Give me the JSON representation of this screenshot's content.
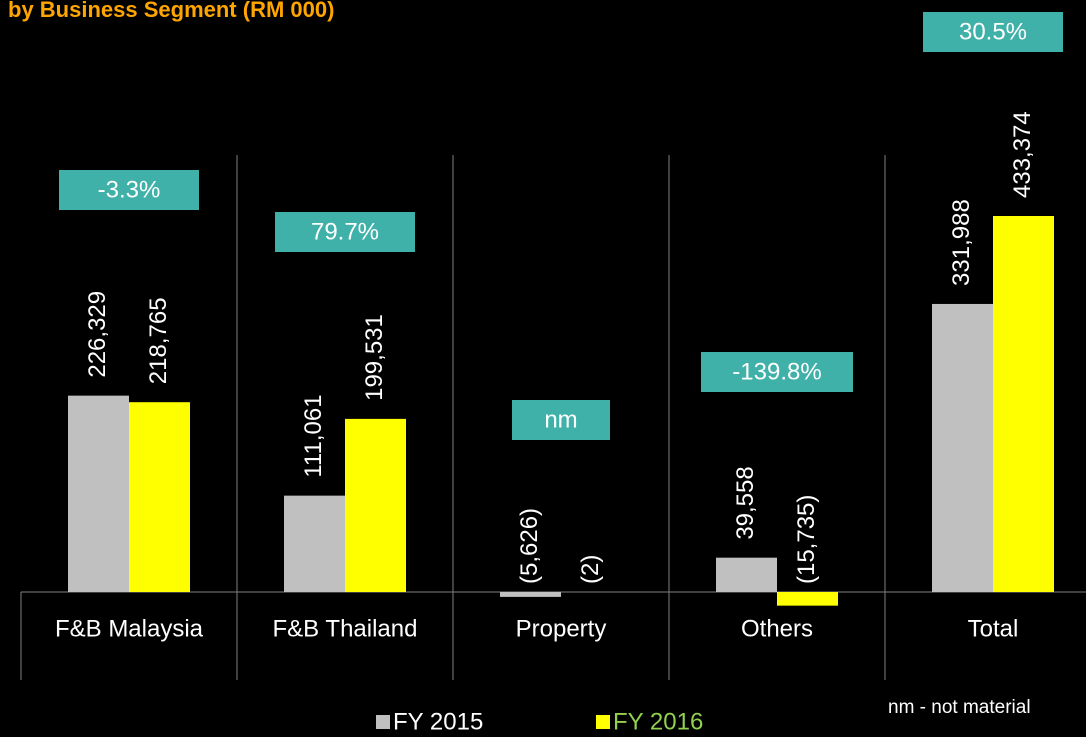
{
  "chart_data": {
    "type": "bar",
    "title": "by Business Segment (RM 000)",
    "categories": [
      "F&B Malaysia",
      "F&B Thailand",
      "Property",
      "Others",
      "Total"
    ],
    "series": [
      {
        "name": "FY 2015",
        "color": "#c0c0c0",
        "values": [
          226329,
          111061,
          -5626,
          39558,
          331988
        ],
        "value_labels": [
          "226,329",
          "111,061",
          "(5,626)",
          "39,558",
          "331,988"
        ]
      },
      {
        "name": "FY 2016",
        "color": "#ffff00",
        "values": [
          218765,
          199531,
          -2,
          -15735,
          433374
        ],
        "value_labels": [
          "218,765",
          "199,531",
          "(2)",
          "(15,735)",
          "433,374"
        ]
      }
    ],
    "annotations": [
      "-3.3%",
      "79.7%",
      "nm",
      "-139.8%",
      "30.5%"
    ],
    "note": "nm - not material"
  }
}
